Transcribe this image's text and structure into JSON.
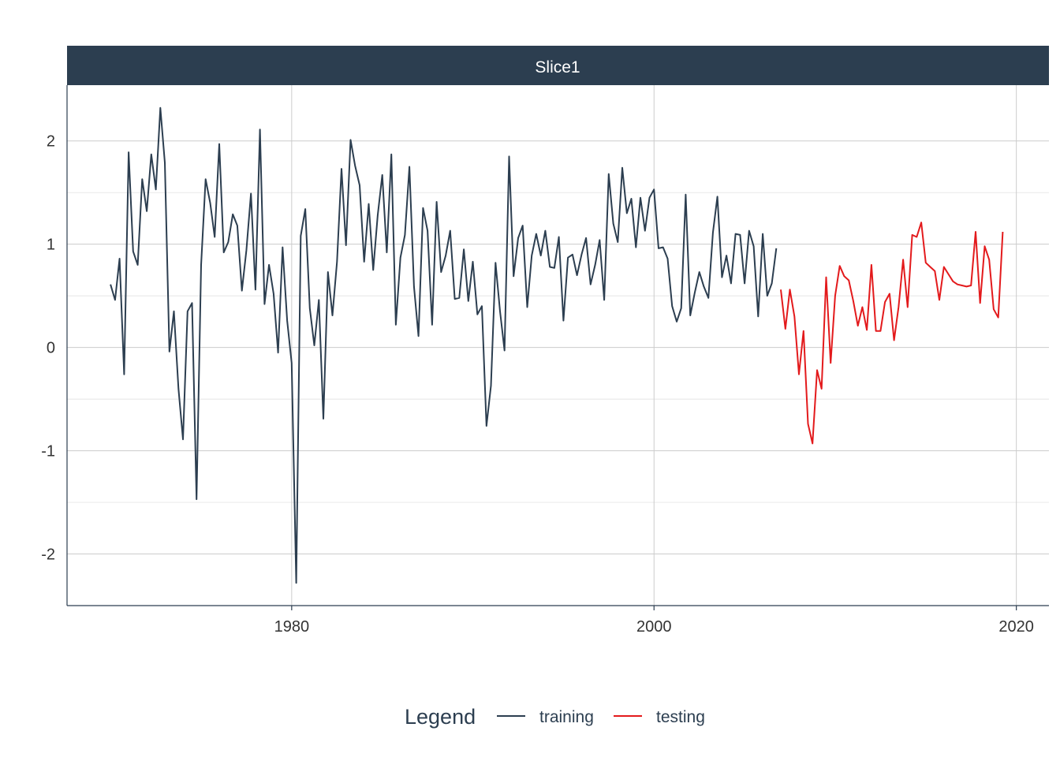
{
  "chart_data": {
    "type": "line",
    "facet_label": "Slice1",
    "x_range": [
      1967.6,
      2021.8
    ],
    "y_range": [
      -2.5,
      2.54
    ],
    "x_ticks": [
      "1980",
      "2000",
      "2020"
    ],
    "y_ticks": [
      "2",
      "1",
      "0",
      "-1",
      "-2"
    ],
    "grid": true,
    "legend": {
      "title": "Legend",
      "position": "bottom",
      "entries": [
        {
          "label": "training",
          "color": "#2c3e50"
        },
        {
          "label": "testing",
          "color": "#e31a1c"
        }
      ]
    },
    "series": [
      {
        "name": "training",
        "color": "#2c3e50",
        "points": [
          [
            1970.0,
            0.61
          ],
          [
            1970.25,
            0.46
          ],
          [
            1970.5,
            0.86
          ],
          [
            1970.75,
            -0.26
          ],
          [
            1971.0,
            1.89
          ],
          [
            1971.25,
            0.93
          ],
          [
            1971.5,
            0.8
          ],
          [
            1971.75,
            1.63
          ],
          [
            1972.0,
            1.32
          ],
          [
            1972.25,
            1.87
          ],
          [
            1972.5,
            1.53
          ],
          [
            1972.75,
            2.32
          ],
          [
            1973.0,
            1.79
          ],
          [
            1973.25,
            -0.04
          ],
          [
            1973.5,
            0.35
          ],
          [
            1973.75,
            -0.4
          ],
          [
            1974.0,
            -0.89
          ],
          [
            1974.25,
            0.35
          ],
          [
            1974.5,
            0.43
          ],
          [
            1974.75,
            -1.47
          ],
          [
            1975.0,
            0.8
          ],
          [
            1975.25,
            1.63
          ],
          [
            1975.5,
            1.4
          ],
          [
            1975.75,
            1.07
          ],
          [
            1976.0,
            1.97
          ],
          [
            1976.25,
            0.92
          ],
          [
            1976.5,
            1.02
          ],
          [
            1976.75,
            1.29
          ],
          [
            1977.0,
            1.18
          ],
          [
            1977.25,
            0.55
          ],
          [
            1977.5,
            0.94
          ],
          [
            1977.75,
            1.49
          ],
          [
            1978.0,
            0.56
          ],
          [
            1978.25,
            2.11
          ],
          [
            1978.5,
            0.42
          ],
          [
            1978.75,
            0.8
          ],
          [
            1979.0,
            0.52
          ],
          [
            1979.25,
            -0.05
          ],
          [
            1979.5,
            0.97
          ],
          [
            1979.75,
            0.26
          ],
          [
            1980.0,
            -0.15
          ],
          [
            1980.25,
            -2.28
          ],
          [
            1980.5,
            1.08
          ],
          [
            1980.75,
            1.34
          ],
          [
            1981.0,
            0.38
          ],
          [
            1981.25,
            0.02
          ],
          [
            1981.5,
            0.46
          ],
          [
            1981.75,
            -0.69
          ],
          [
            1982.0,
            0.73
          ],
          [
            1982.25,
            0.31
          ],
          [
            1982.5,
            0.83
          ],
          [
            1982.75,
            1.73
          ],
          [
            1983.0,
            0.99
          ],
          [
            1983.25,
            2.01
          ],
          [
            1983.5,
            1.76
          ],
          [
            1983.75,
            1.57
          ],
          [
            1984.0,
            0.83
          ],
          [
            1984.25,
            1.39
          ],
          [
            1984.5,
            0.75
          ],
          [
            1984.75,
            1.28
          ],
          [
            1985.0,
            1.67
          ],
          [
            1985.25,
            0.92
          ],
          [
            1985.5,
            1.87
          ],
          [
            1985.75,
            0.22
          ],
          [
            1986.0,
            0.87
          ],
          [
            1986.25,
            1.09
          ],
          [
            1986.5,
            1.75
          ],
          [
            1986.75,
            0.59
          ],
          [
            1987.0,
            0.11
          ],
          [
            1987.25,
            1.35
          ],
          [
            1987.5,
            1.13
          ],
          [
            1987.75,
            0.22
          ],
          [
            1988.0,
            1.41
          ],
          [
            1988.25,
            0.73
          ],
          [
            1988.5,
            0.89
          ],
          [
            1988.75,
            1.13
          ],
          [
            1989.0,
            0.47
          ],
          [
            1989.25,
            0.48
          ],
          [
            1989.5,
            0.95
          ],
          [
            1989.75,
            0.45
          ],
          [
            1990.0,
            0.83
          ],
          [
            1990.25,
            0.32
          ],
          [
            1990.5,
            0.4
          ],
          [
            1990.75,
            -0.76
          ],
          [
            1991.0,
            -0.37
          ],
          [
            1991.25,
            0.82
          ],
          [
            1991.5,
            0.35
          ],
          [
            1991.75,
            -0.03
          ],
          [
            1992.0,
            1.85
          ],
          [
            1992.25,
            0.69
          ],
          [
            1992.5,
            1.06
          ],
          [
            1992.75,
            1.18
          ],
          [
            1993.0,
            0.39
          ],
          [
            1993.25,
            0.89
          ],
          [
            1993.5,
            1.1
          ],
          [
            1993.75,
            0.89
          ],
          [
            1994.0,
            1.13
          ],
          [
            1994.25,
            0.78
          ],
          [
            1994.5,
            0.77
          ],
          [
            1994.75,
            1.07
          ],
          [
            1995.0,
            0.26
          ],
          [
            1995.25,
            0.87
          ],
          [
            1995.5,
            0.9
          ],
          [
            1995.75,
            0.7
          ],
          [
            1996.0,
            0.9
          ],
          [
            1996.25,
            1.06
          ],
          [
            1996.5,
            0.61
          ],
          [
            1996.75,
            0.8
          ],
          [
            1997.0,
            1.04
          ],
          [
            1997.25,
            0.46
          ],
          [
            1997.5,
            1.68
          ],
          [
            1997.75,
            1.2
          ],
          [
            1998.0,
            1.02
          ],
          [
            1998.25,
            1.74
          ],
          [
            1998.5,
            1.3
          ],
          [
            1998.75,
            1.44
          ],
          [
            1999.0,
            0.97
          ],
          [
            1999.25,
            1.45
          ],
          [
            1999.5,
            1.13
          ],
          [
            1999.75,
            1.45
          ],
          [
            2000.0,
            1.53
          ],
          [
            2000.25,
            0.96
          ],
          [
            2000.5,
            0.97
          ],
          [
            2000.75,
            0.86
          ],
          [
            2001.0,
            0.4
          ],
          [
            2001.25,
            0.25
          ],
          [
            2001.5,
            0.38
          ],
          [
            2001.75,
            1.48
          ],
          [
            2002.0,
            0.31
          ],
          [
            2002.25,
            0.53
          ],
          [
            2002.5,
            0.73
          ],
          [
            2002.75,
            0.59
          ],
          [
            2003.0,
            0.48
          ],
          [
            2003.25,
            1.11
          ],
          [
            2003.5,
            1.46
          ],
          [
            2003.75,
            0.68
          ],
          [
            2004.0,
            0.89
          ],
          [
            2004.25,
            0.62
          ],
          [
            2004.5,
            1.1
          ],
          [
            2004.75,
            1.09
          ],
          [
            2005.0,
            0.62
          ],
          [
            2005.25,
            1.13
          ],
          [
            2005.5,
            0.98
          ],
          [
            2005.75,
            0.3
          ],
          [
            2006.0,
            1.1
          ],
          [
            2006.25,
            0.5
          ],
          [
            2006.5,
            0.62
          ],
          [
            2006.75,
            0.96
          ]
        ]
      },
      {
        "name": "testing",
        "color": "#e31a1c",
        "points": [
          [
            2007.0,
            0.56
          ],
          [
            2007.25,
            0.18
          ],
          [
            2007.5,
            0.56
          ],
          [
            2007.75,
            0.3
          ],
          [
            2008.0,
            -0.26
          ],
          [
            2008.25,
            0.16
          ],
          [
            2008.5,
            -0.74
          ],
          [
            2008.75,
            -0.93
          ],
          [
            2009.0,
            -0.22
          ],
          [
            2009.25,
            -0.4
          ],
          [
            2009.5,
            0.68
          ],
          [
            2009.75,
            -0.15
          ],
          [
            2010.0,
            0.5
          ],
          [
            2010.25,
            0.79
          ],
          [
            2010.5,
            0.69
          ],
          [
            2010.75,
            0.65
          ],
          [
            2011.0,
            0.45
          ],
          [
            2011.25,
            0.21
          ],
          [
            2011.5,
            0.39
          ],
          [
            2011.75,
            0.17
          ],
          [
            2012.0,
            0.8
          ],
          [
            2012.25,
            0.16
          ],
          [
            2012.5,
            0.16
          ],
          [
            2012.75,
            0.44
          ],
          [
            2013.0,
            0.52
          ],
          [
            2013.25,
            0.07
          ],
          [
            2013.5,
            0.39
          ],
          [
            2013.75,
            0.85
          ],
          [
            2014.0,
            0.39
          ],
          [
            2014.25,
            1.09
          ],
          [
            2014.5,
            1.07
          ],
          [
            2014.75,
            1.21
          ],
          [
            2015.0,
            0.82
          ],
          [
            2015.25,
            0.78
          ],
          [
            2015.5,
            0.74
          ],
          [
            2015.75,
            0.46
          ],
          [
            2016.0,
            0.78
          ],
          [
            2016.25,
            0.71
          ],
          [
            2016.5,
            0.64
          ],
          [
            2016.75,
            0.61
          ],
          [
            2017.0,
            0.6
          ],
          [
            2017.25,
            0.59
          ],
          [
            2017.5,
            0.6
          ],
          [
            2017.75,
            1.12
          ],
          [
            2018.0,
            0.43
          ],
          [
            2018.25,
            0.98
          ],
          [
            2018.5,
            0.85
          ],
          [
            2018.75,
            0.37
          ],
          [
            2019.0,
            0.29
          ],
          [
            2019.25,
            1.12
          ]
        ]
      }
    ]
  }
}
